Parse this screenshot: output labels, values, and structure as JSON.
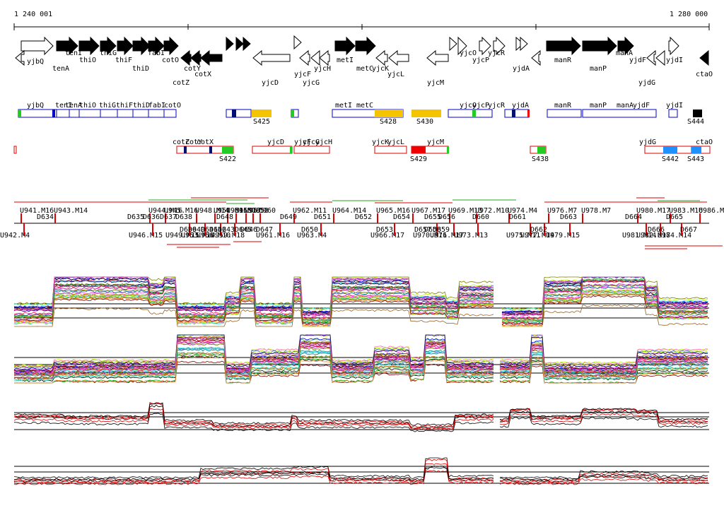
{
  "ruler": {
    "start_label": "1 240 001",
    "end_label": "1 280 000"
  },
  "colors": {
    "gene_fill": "#000000",
    "segment_border_fwd": "#0000cc",
    "segment_border_rev": "#dd0000",
    "highlight_yellow": "#f5c400",
    "highlight_green": "#22cc22",
    "highlight_blue": "#1e90ff",
    "highlight_red": "#ee0000",
    "trace_black": "#000000",
    "trace_red": "#dd0000",
    "bracket_red": "#dd0000",
    "bracket_green": "#22aa22"
  },
  "genes_fwd": [
    {
      "label": "yjbQ",
      "filled": false
    },
    {
      "label": "tenI",
      "filled": true
    },
    {
      "label": "thiO",
      "filled": true
    },
    {
      "label": "thiG",
      "filled": true
    },
    {
      "label": "thiF",
      "filled": true
    },
    {
      "label": "thiD",
      "filled": true
    },
    {
      "label": "fabI",
      "filled": true
    },
    {
      "label": "cotO",
      "filled": true
    },
    {
      "label": "metI",
      "filled": true
    },
    {
      "label": "metC",
      "filled": true
    },
    {
      "label": "yjcO",
      "filled": false
    },
    {
      "label": "yjcP",
      "filled": false
    },
    {
      "label": "yjcR",
      "filled": false
    },
    {
      "label": "manR",
      "filled": true
    },
    {
      "label": "manP",
      "filled": true
    },
    {
      "label": "manA",
      "filled": true
    },
    {
      "label": "yjdI",
      "filled": false
    }
  ],
  "genes_rev": [
    {
      "label": "tenA"
    },
    {
      "label": "cotY"
    },
    {
      "label": "cotX"
    },
    {
      "label": "cotZ"
    },
    {
      "label": "yjcD"
    },
    {
      "label": "yjcF"
    },
    {
      "label": "yjcG"
    },
    {
      "label": "yjcH"
    },
    {
      "label": "yjcK"
    },
    {
      "label": "yjcL"
    },
    {
      "label": "yjcM"
    },
    {
      "label": "yjdA"
    },
    {
      "label": "yjdF"
    },
    {
      "label": "yjdG"
    },
    {
      "label": "ctaO"
    }
  ],
  "segments_fwd": [
    "yjbQ",
    "tenI",
    "tenA",
    "thiO",
    "thiG",
    "thiF",
    "thiD",
    "fabI",
    "cotO",
    "metI",
    "metC",
    "yjcO",
    "yjcP",
    "yjcR",
    "yjdA",
    "manR",
    "manP",
    "manA",
    "yjdF",
    "yjdI"
  ],
  "segments_rev": [
    "cotZ",
    "cotY",
    "cotX",
    "yjcD",
    "yjcF",
    "yjcG",
    "yjcH",
    "yjcK",
    "yjcL",
    "yjcM",
    "yjdG",
    "ctaO"
  ],
  "s_labels_fwd": [
    "S425",
    "S428",
    "S430",
    "S444"
  ],
  "s_labels_rev": [
    "S422",
    "S429",
    "S438",
    "S442",
    "S443"
  ],
  "probes_top": [
    "U941.M16",
    "U943.M14",
    "U944.M16",
    "U945.M16",
    "U948.M14",
    "U951.M16",
    "U954.M16",
    "U955",
    "U957",
    "U958",
    "U960",
    "U962.M11",
    "U964.M14",
    "U965.M16",
    "U967.M17",
    "U969.M13",
    "U972.M10",
    "U974.M4",
    "U976.M7",
    "U978.M7",
    "U980.M17",
    "U983.M16",
    "U986.M16"
  ],
  "probes_d_top": [
    "D634",
    "D635",
    "D636",
    "D637",
    "D638",
    "D648",
    "D649",
    "D651",
    "D652",
    "D654",
    "D655",
    "D656",
    "D660",
    "D661",
    "D663",
    "D664",
    "D665"
  ],
  "probes_bottom": [
    "U942.M4",
    "U946.M15",
    "U949.M15",
    "U953.M14",
    "U956.M10",
    "U959.M18",
    "U961.M16",
    "U963.M4",
    "U966.M17",
    "U970.M16",
    "U971.M17",
    "U973.M13",
    "U975.M11",
    "U977.M14",
    "U979.M15",
    "U981.M14",
    "U982.M17",
    "U984.M14"
  ],
  "probes_d_bottom": [
    "D639",
    "D640",
    "D641",
    "D642",
    "D643",
    "D645",
    "D646",
    "D647",
    "D650",
    "D653",
    "D657",
    "D658",
    "D659",
    "D662",
    "D666",
    "D667"
  ]
}
